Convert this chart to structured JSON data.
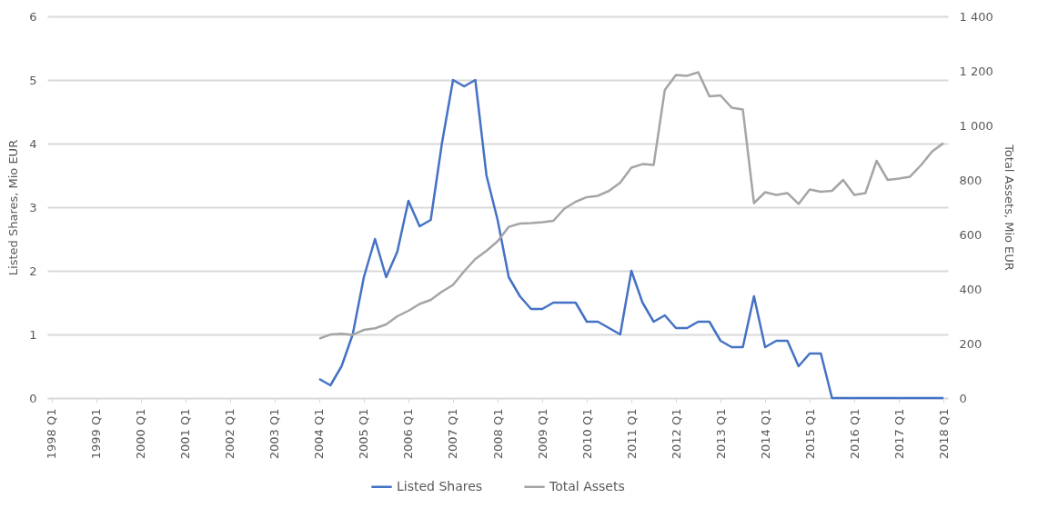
{
  "chart_data": {
    "type": "line",
    "ylabel": "Listed Shares, Mio EUR",
    "y2label": "Total Assets, Mio EUR",
    "categories": [
      "1998 Q1",
      null,
      null,
      null,
      "1999 Q1",
      null,
      null,
      null,
      "2000 Q1",
      null,
      null,
      null,
      "2001 Q1",
      null,
      null,
      null,
      "2002 Q1",
      null,
      null,
      null,
      "2003 Q1",
      null,
      null,
      null,
      "2004 Q1",
      null,
      null,
      null,
      "2005 Q1",
      null,
      null,
      null,
      "2006 Q1",
      null,
      null,
      null,
      "2007 Q1",
      null,
      null,
      null,
      "2008 Q1",
      null,
      null,
      null,
      "2009 Q1",
      null,
      null,
      null,
      "2010 Q1",
      null,
      null,
      null,
      "2011 Q1",
      null,
      null,
      null,
      "2012 Q1",
      null,
      null,
      null,
      "2013 Q1",
      null,
      null,
      null,
      "2014 Q1",
      null,
      null,
      null,
      "2015 Q1",
      null,
      null,
      null,
      "2016 Q1",
      null,
      null,
      null,
      "2017 Q1",
      null,
      null,
      null,
      "2018 Q1"
    ],
    "series": [
      {
        "name": "Listed Shares",
        "color": "#4472c4",
        "values": [
          null,
          null,
          null,
          null,
          null,
          null,
          null,
          null,
          null,
          null,
          null,
          null,
          null,
          null,
          null,
          null,
          null,
          null,
          null,
          null,
          null,
          null,
          null,
          null,
          0.3,
          0.2,
          0.5,
          1.0,
          1.9,
          2.5,
          1.9,
          2.3,
          3.1,
          2.7,
          2.8,
          4.0,
          5.0,
          4.9,
          5.0,
          3.5,
          2.8,
          1.9,
          1.6,
          1.4,
          1.4,
          1.5,
          1.5,
          1.5,
          1.2,
          1.2,
          1.1,
          1.0,
          2.0,
          1.5,
          1.2,
          1.3,
          1.1,
          1.1,
          1.2,
          1.2,
          0.9,
          0.8,
          0.8,
          1.6,
          0.8,
          0.9,
          0.9,
          0.5,
          0.7,
          0.7,
          0,
          0,
          0,
          0,
          0,
          0,
          0,
          0,
          0,
          0,
          0
        ]
      },
      {
        "name": "Total Assets",
        "color": "#a5a5a5",
        "axis": "y2",
        "values": [
          null,
          null,
          null,
          null,
          null,
          null,
          null,
          null,
          null,
          null,
          null,
          null,
          null,
          null,
          null,
          null,
          null,
          null,
          null,
          null,
          null,
          null,
          null,
          null,
          218,
          233,
          236,
          232,
          250,
          256,
          270,
          300,
          320,
          345,
          360,
          390,
          415,
          465,
          510,
          540,
          575,
          628,
          640,
          642,
          645,
          650,
          695,
          720,
          737,
          742,
          760,
          790,
          845,
          858,
          855,
          1130,
          1185,
          1182,
          1195,
          1107,
          1110,
          1065,
          1058,
          715,
          755,
          745,
          752,
          712,
          765,
          757,
          760,
          800,
          745,
          752,
          870,
          800,
          805,
          812,
          855,
          905,
          935
        ]
      }
    ],
    "ylim": [
      0,
      6
    ],
    "yticks": [
      0,
      1,
      2,
      3,
      4,
      5,
      6
    ],
    "y2lim": [
      0,
      1400
    ],
    "y2ticks": [
      0,
      200,
      400,
      600,
      800,
      {
        "value": 1000,
        "label": "1 000"
      },
      {
        "value": 1200,
        "label": "1 200"
      },
      {
        "value": 1400,
        "label": "1 400"
      }
    ],
    "grid": "y",
    "legend": "bottom"
  }
}
